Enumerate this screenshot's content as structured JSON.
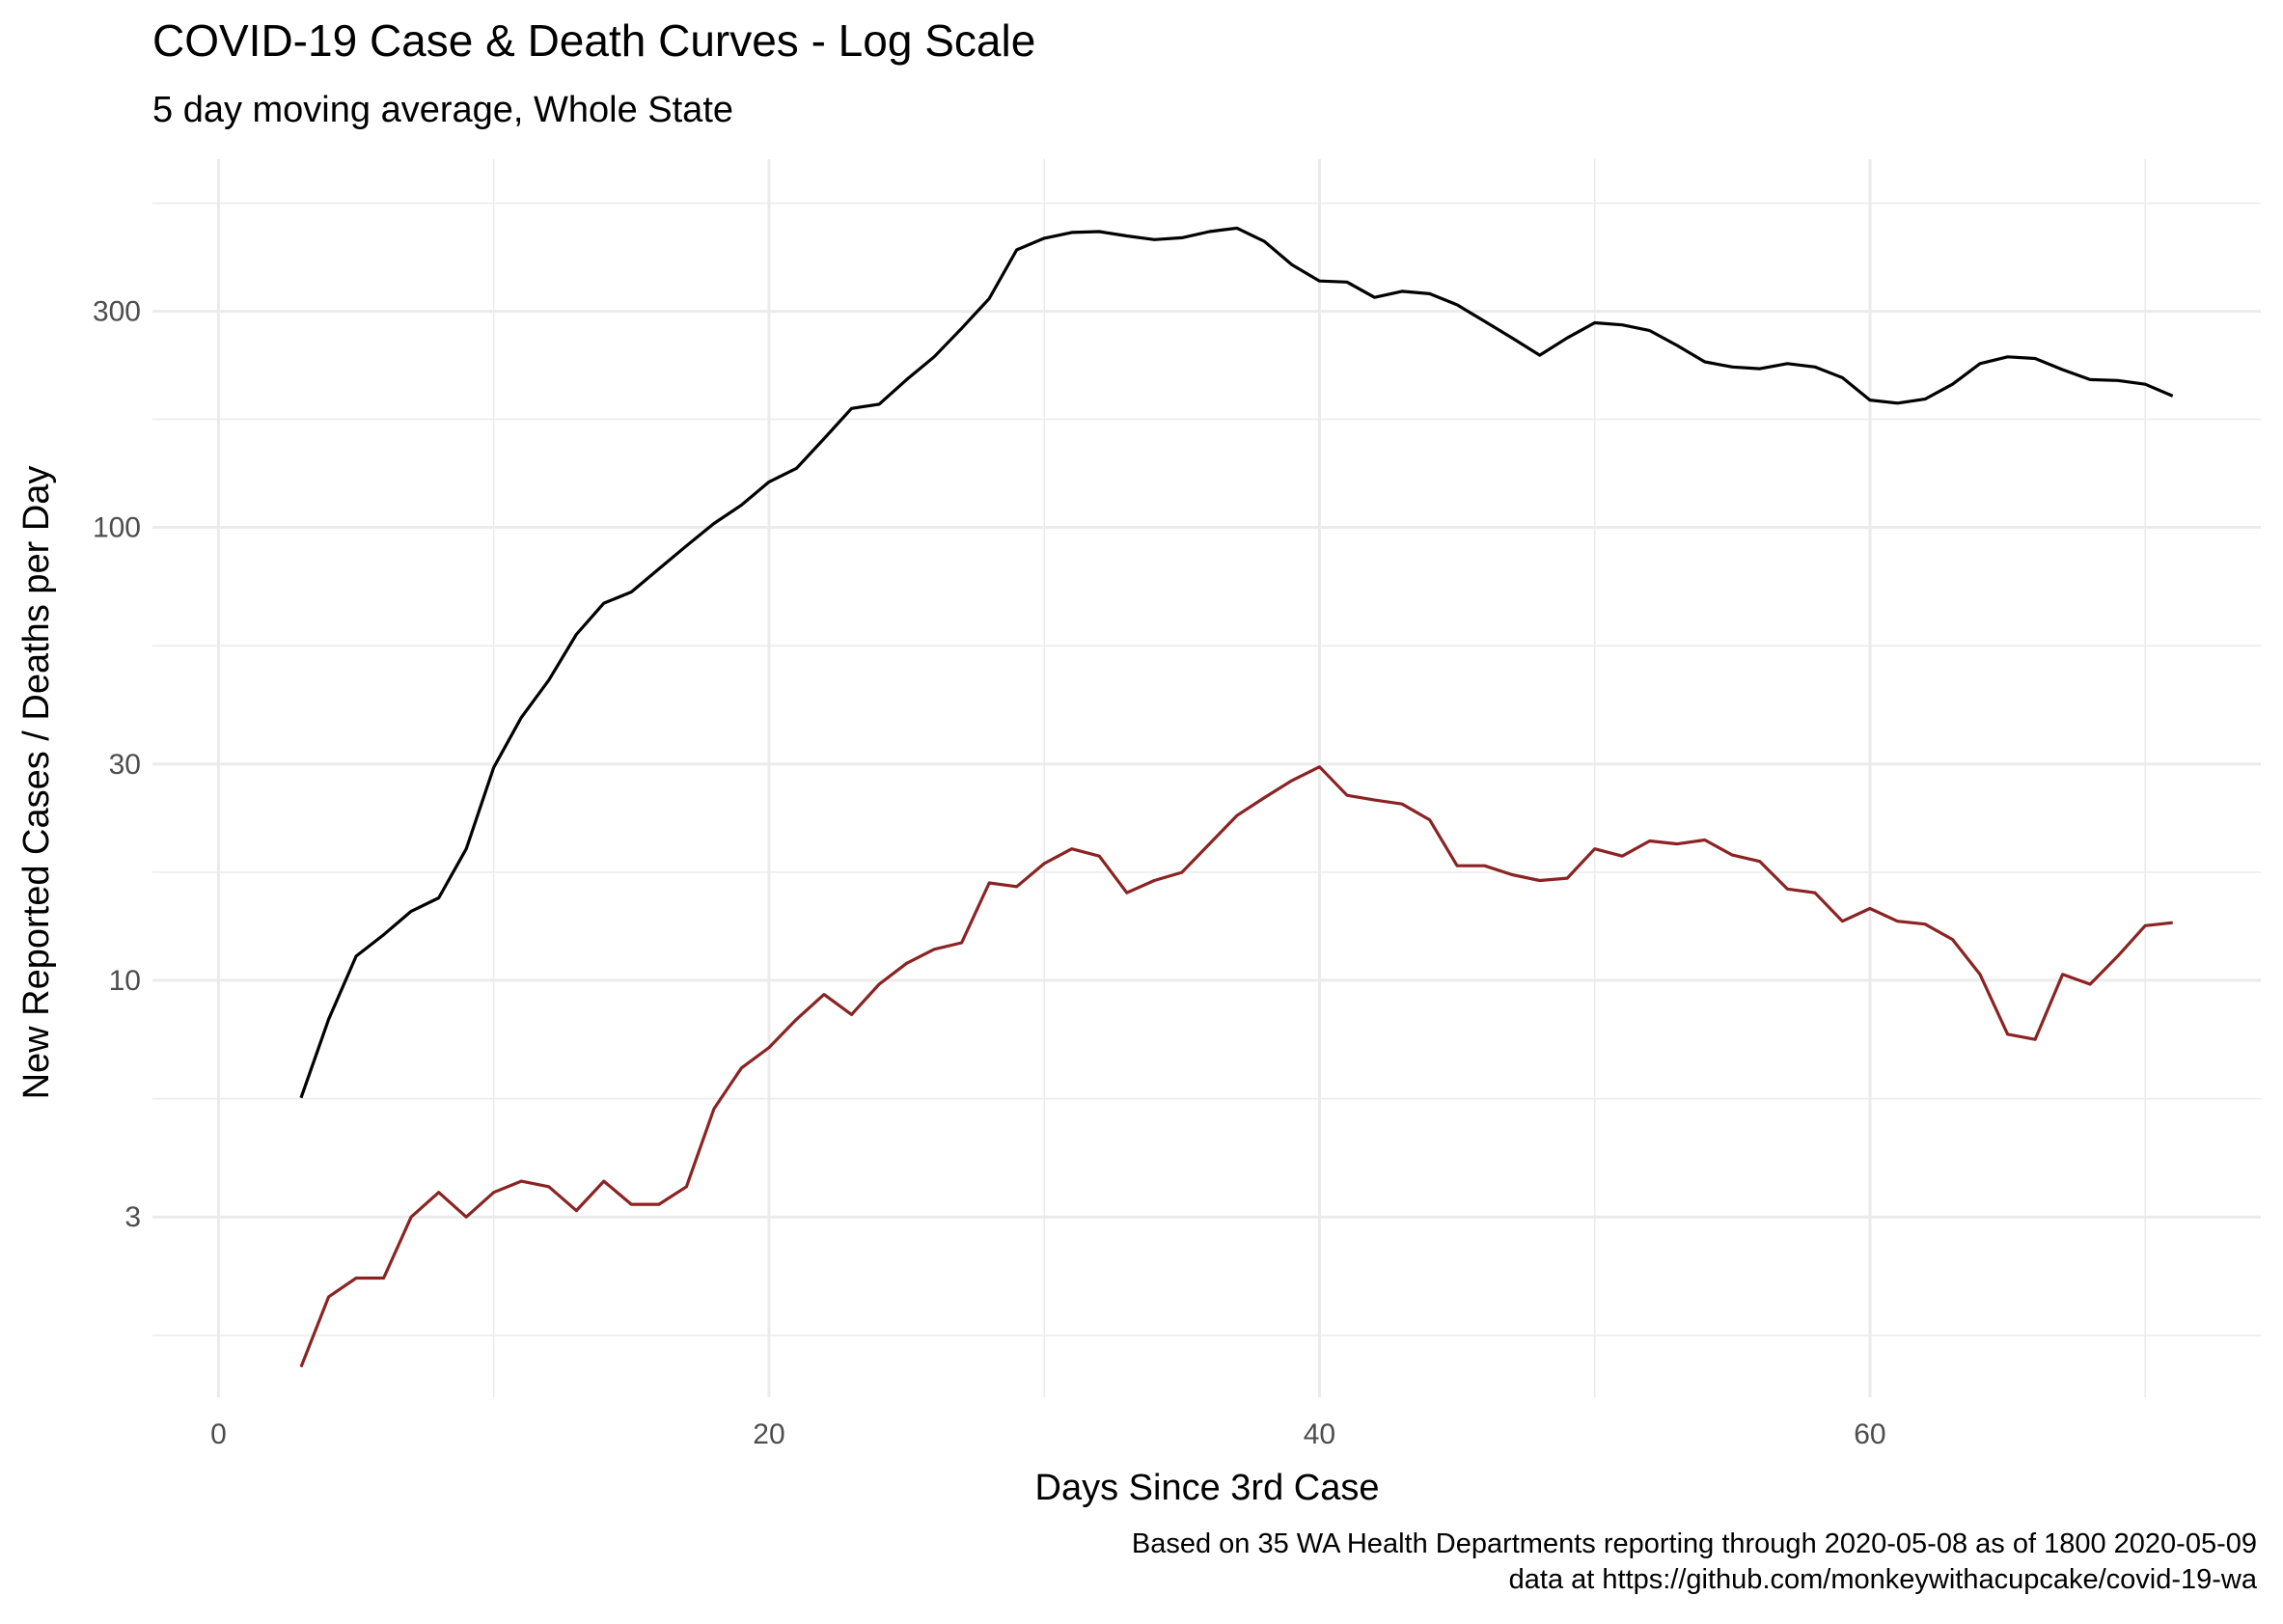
{
  "chart_data": {
    "type": "line",
    "title": "COVID-19 Case & Death Curves - Log Scale",
    "subtitle": "5 day moving average, Whole State",
    "xlabel": "Days Since 3rd Case",
    "ylabel": "New Reported Cases / Deaths per Day",
    "caption_lines": [
      "Based on 35 WA Health Departments reporting through 2020-05-08 as of 1800 2020-05-09",
      "data at https://github.com/monkeywithacupcake/covid-19-wa"
    ],
    "xlim": [
      -2.4,
      74.2
    ],
    "ylim": [
      1.2,
      650
    ],
    "y_scale": "log10",
    "x_ticks": [
      0,
      20,
      40,
      60
    ],
    "x_tick_labels": [
      "0",
      "20",
      "40",
      "60"
    ],
    "y_ticks": [
      3,
      10,
      30,
      100,
      300
    ],
    "y_tick_labels": [
      "3",
      "10",
      "30",
      "100",
      "300"
    ],
    "grid": true,
    "legend": "none",
    "colors": {
      "cases": "#000000",
      "deaths": "#8b2323",
      "grid": "#ebebeb",
      "tick_text": "#4d4d4d"
    },
    "series": [
      {
        "key": "cases",
        "x": [
          3,
          4,
          5,
          6,
          7,
          8,
          9,
          10,
          11,
          12,
          13,
          14,
          15,
          16,
          17,
          18,
          19,
          20,
          21,
          22,
          23,
          24,
          25,
          26,
          27,
          28,
          29,
          30,
          31,
          32,
          33,
          34,
          35,
          36,
          37,
          38,
          39,
          40,
          41,
          42,
          43,
          44,
          45,
          46,
          47,
          48,
          49,
          50,
          51,
          52,
          53,
          54,
          55,
          56,
          57,
          58,
          59,
          60,
          61,
          62,
          63,
          64,
          65,
          66,
          67,
          68,
          69,
          70,
          71
        ],
        "y": [
          5.5,
          8.2,
          11.3,
          12.6,
          14.2,
          15.2,
          19.5,
          29.5,
          38,
          46,
          58,
          68,
          72,
          81,
          91,
          102,
          112,
          126,
          135,
          157,
          183,
          187,
          212,
          238,
          275,
          320,
          410,
          435,
          448,
          450,
          440,
          432,
          436,
          450,
          458,
          428,
          380,
          350,
          348,
          322,
          332,
          328,
          310,
          285,
          262,
          240,
          262,
          283,
          280,
          272,
          252,
          232,
          226,
          224,
          230,
          226,
          214,
          191,
          188,
          192,
          207,
          230,
          238,
          236,
          223,
          212,
          211,
          207,
          195
        ]
      },
      {
        "key": "deaths",
        "x": [
          3,
          4,
          5,
          6,
          7,
          8,
          9,
          10,
          11,
          12,
          13,
          14,
          15,
          16,
          17,
          18,
          19,
          20,
          21,
          22,
          23,
          24,
          25,
          26,
          27,
          28,
          29,
          30,
          31,
          32,
          33,
          34,
          35,
          36,
          37,
          38,
          39,
          40,
          41,
          42,
          43,
          44,
          45,
          46,
          47,
          48,
          49,
          50,
          51,
          52,
          53,
          54,
          55,
          56,
          57,
          58,
          59,
          60,
          61,
          62,
          63,
          64,
          65,
          66,
          67,
          68,
          69,
          70,
          71
        ],
        "y": [
          1.4,
          2.0,
          2.2,
          2.2,
          3.0,
          3.4,
          3.0,
          3.4,
          3.6,
          3.5,
          3.1,
          3.6,
          3.2,
          3.2,
          3.5,
          5.2,
          6.4,
          7.1,
          8.2,
          9.3,
          8.4,
          9.8,
          10.9,
          11.7,
          12.1,
          16.4,
          16.1,
          18.1,
          19.5,
          18.8,
          15.6,
          16.6,
          17.3,
          20.0,
          23.1,
          25.3,
          27.6,
          29.6,
          25.6,
          25.0,
          24.5,
          22.6,
          17.9,
          17.9,
          17.1,
          16.6,
          16.8,
          19.5,
          18.8,
          20.3,
          20.0,
          20.4,
          18.9,
          18.3,
          15.9,
          15.6,
          13.5,
          14.4,
          13.5,
          13.3,
          12.3,
          10.3,
          7.6,
          7.4,
          10.3,
          9.8,
          11.3,
          13.2,
          13.4
        ]
      }
    ]
  }
}
